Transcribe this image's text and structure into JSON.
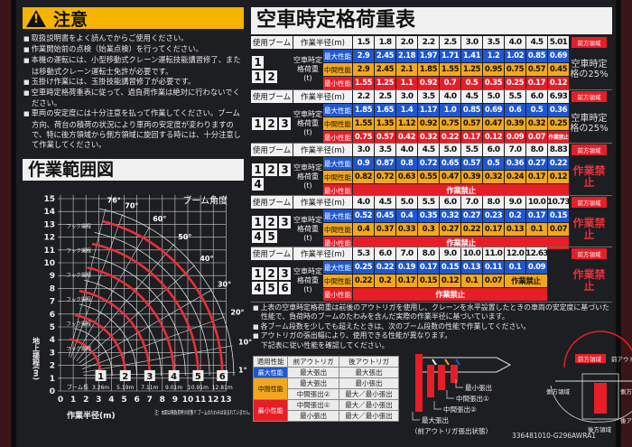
{
  "left": {
    "warning_title": "注意",
    "warning_icon": "warning-triangle-icon",
    "notes": [
      "取扱説明書をよく読んでからご使用ください。",
      "作業開始前の点検（始業点検）を行ってください。",
      "本機の運転には、小型移動式クレーン運転技能講習修了、または移動式クレーン運転士免許が必要です。",
      "玉掛け作業には、玉掛技能講習修了が必要です。",
      "空車時定格荷重表に従って、過負荷作業は絶対に行わないでください。",
      "車両の安定度には十分注意を払って作業してください。ブーム方向、荷台の積荷の状況により車両の安定度が変わりますので、特に後方領域から側方領域に旋回する時には、十分注意して作業してください。"
    ],
    "range_title": "作業範囲図",
    "range_chart": {
      "y_label": "地上揚程(m)",
      "x_label": "作業半径(m)",
      "x_ticks": [
        "0",
        "1",
        "2",
        "3",
        "4",
        "5",
        "6",
        "7",
        "8",
        "9",
        "10",
        "11",
        "12",
        "13"
      ],
      "y_ticks": [
        "0",
        "1",
        "2",
        "3",
        "4",
        "5",
        "6",
        "7",
        "8",
        "9",
        "10",
        "11",
        "12",
        "13",
        "14",
        "15"
      ],
      "boom_angle_label": "ブーム角度",
      "angles": [
        "76°",
        "70°",
        "60°",
        "50°",
        "40°",
        "30°",
        "20°",
        "10°",
        "1°"
      ],
      "angle_values": [
        76,
        70,
        60,
        50,
        40,
        30,
        20,
        10,
        1
      ],
      "hook_label": "フック揚程",
      "boom_length_label": "ブーム長",
      "booms": [
        {
          "stage": "1",
          "length": "3.26m",
          "value": 3.26
        },
        {
          "stage": "2",
          "length": "5.19m",
          "value": 5.19
        },
        {
          "stage": "3",
          "length": "7.11m",
          "value": 7.11
        },
        {
          "stage": "4",
          "length": "9.01m",
          "value": 9.01
        },
        {
          "stage": "5",
          "length": "10.91m",
          "value": 10.91
        },
        {
          "stage": "6",
          "length": "12.81m",
          "value": 12.81
        }
      ],
      "note": "注：本図は無負荷時の状態で ブームのたわみは含まれていません。"
    }
  },
  "right": {
    "title": "空車時定格荷重表",
    "boom_header": "使用ブーム",
    "radius_header": "作業半径(m)",
    "load_label": "空車時定格荷重(t)",
    "front_area_tag": "前方領域",
    "colors": {
      "max": "#1f57d0",
      "mid": "#f2a71c",
      "min": "#e61e28"
    },
    "tables": [
      {
        "booms": [
          [
            "1"
          ],
          [
            "1",
            "2"
          ]
        ],
        "radii": [
          "1.5",
          "1.8",
          "2.0",
          "2.2",
          "2.5",
          "3.0",
          "3.5",
          "4.0",
          "4.5",
          "5.01"
        ],
        "rows": [
          {
            "label": "最大性能",
            "values": [
              "2.9",
              "2.45",
              "2.18",
              "1.97",
              "1.71",
              "1.41",
              "1.2",
              "1.02",
              "0.85",
              "0.69"
            ]
          },
          {
            "label": "中間性能",
            "values": [
              "2.9",
              "2.45",
              "2.1",
              "1.85",
              "1.55",
              "1.25",
              "0.95",
              "0.75",
              "0.57",
              "0.45"
            ]
          },
          {
            "label": "最小性能",
            "values": [
              "1.55",
              "1.25",
              "1.1",
              "0.92",
              "0.7",
              "0.5",
              "0.35",
              "0.25",
              "0.17",
              "0.12"
            ]
          }
        ],
        "side": "空車時定格の25%"
      },
      {
        "booms": [
          [
            "1",
            "2",
            "3"
          ]
        ],
        "radii": [
          "2.2",
          "2.5",
          "3.0",
          "3.5",
          "4.0",
          "4.5",
          "5.0",
          "5.5",
          "6.0",
          "6.93"
        ],
        "rows": [
          {
            "label": "最大性能",
            "values": [
              "1.85",
              "1.65",
              "1.4",
              "1.17",
              "1.0",
              "0.85",
              "0.69",
              "0.6",
              "0.5",
              "0.36"
            ]
          },
          {
            "label": "中間性能",
            "values": [
              "1.55",
              "1.35",
              "1.12",
              "0.92",
              "0.75",
              "0.57",
              "0.47",
              "0.39",
              "0.32",
              "0.25"
            ]
          },
          {
            "label": "最小性能",
            "values": [
              "0.75",
              "0.57",
              "0.42",
              "0.32",
              "0.22",
              "0.17",
              "0.12",
              "0.09",
              "0.07"
            ],
            "forbidden": "作業禁止"
          }
        ],
        "side": "空車時定格の25%"
      },
      {
        "booms": [
          [
            "1",
            "2",
            "3"
          ],
          [
            "4"
          ]
        ],
        "radii": [
          "3.0",
          "3.5",
          "4.0",
          "4.5",
          "5.0",
          "5.5",
          "6.0",
          "7.0",
          "8.0",
          "8.83"
        ],
        "rows": [
          {
            "label": "最大性能",
            "values": [
              "0.9",
              "0.87",
              "0.8",
              "0.72",
              "0.65",
              "0.57",
              "0.5",
              "0.36",
              "0.27",
              "0.22"
            ]
          },
          {
            "label": "中間性能",
            "values": [
              "0.82",
              "0.72",
              "0.63",
              "0.55",
              "0.47",
              "0.39",
              "0.32",
              "0.24",
              "0.17",
              "0.12"
            ]
          },
          {
            "label": "最小性能",
            "values": [],
            "forbidden": "作業禁止"
          }
        ],
        "side": "作業禁止"
      },
      {
        "booms": [
          [
            "1",
            "2",
            "3"
          ],
          [
            "4",
            "5"
          ]
        ],
        "radii": [
          "4.0",
          "4.5",
          "5.0",
          "5.5",
          "6.0",
          "7.0",
          "8.0",
          "9.0",
          "10.0",
          "10.73"
        ],
        "rows": [
          {
            "label": "最大性能",
            "values": [
              "0.52",
              "0.45",
              "0.4",
              "0.35",
              "0.32",
              "0.27",
              "0.23",
              "0.2",
              "0.17",
              "0.15"
            ]
          },
          {
            "label": "中間性能",
            "values": [
              "0.4",
              "0.37",
              "0.33",
              "0.3",
              "0.27",
              "0.22",
              "0.17",
              "0.13",
              "0.1",
              "0.07"
            ]
          },
          {
            "label": "最小性能",
            "values": [],
            "forbidden": "作業禁止"
          }
        ],
        "side": "作業禁止"
      },
      {
        "booms": [
          [
            "1",
            "2",
            "3"
          ],
          [
            "4",
            "5",
            "6"
          ]
        ],
        "radii": [
          "5.3",
          "6.0",
          "7.0",
          "8.0",
          "9.0",
          "10.0",
          "11.0",
          "12.0",
          "12.63"
        ],
        "rows": [
          {
            "label": "最大性能",
            "values": [
              "0.25",
              "0.22",
              "0.19",
              "0.17",
              "0.15",
              "0.13",
              "0.11",
              "0.1",
              "0.09"
            ]
          },
          {
            "label": "中間性能",
            "values": [
              "0.22",
              "0.2",
              "0.17",
              "0.15",
              "0.12",
              "0.1",
              "0.07"
            ],
            "forbidden": "作業禁止"
          },
          {
            "label": "最小性能",
            "values": [],
            "forbidden": "作業禁止"
          }
        ],
        "side": "作業禁止"
      }
    ],
    "notes": [
      {
        "text": "上表の空車時定格荷重は前後のアウトリガを使用し、クレーンを水平設置したときの車両の安定度に基づいた性能で、負荷時のブームのたわみを含んだ実際の作業半径に基づいています。"
      },
      {
        "text": "各ブーム段数を少しでも超えたときは、次のブーム段数の性能で作業してください。"
      },
      {
        "text": "アウトリガの張出幅により、使用できる性能が異なります。",
        "sub": "下記表に従い性能を確認してください。"
      }
    ],
    "outrigger_table": {
      "headers": [
        "適用性能",
        "前アウトリガ",
        "後アウトリガ"
      ],
      "groups": [
        {
          "label": "最大性能",
          "color": "#1f57d0",
          "rows": [
            [
              "最大張出",
              "最大張出"
            ]
          ]
        },
        {
          "label": "中間性能",
          "color": "#f2a71c",
          "rows": [
            [
              "最大張出",
              "最小張出"
            ],
            [
              "中間張出②",
              "最大／最小張出"
            ]
          ]
        },
        {
          "label": "最小性能",
          "color": "#e61e28",
          "rows": [
            [
              "中間張出①",
              "最大／最小張出"
            ],
            [
              "最小張出",
              "最大／最小張出"
            ]
          ]
        }
      ]
    },
    "outrigger_diagram": {
      "labels": [
        "最小張出",
        "中間張出①",
        "中間張出②",
        "最大張出"
      ],
      "caption": "（前アウトリガ張出状態）"
    },
    "area_diagram": {
      "front_area": "前方領域",
      "front_outrigger": "前アウトリガ",
      "side_area": "側方領域",
      "rear_area": "後方領域",
      "rear_outrigger": "後アウトリガ"
    },
    "code": "336481010-G296AWRA1"
  }
}
